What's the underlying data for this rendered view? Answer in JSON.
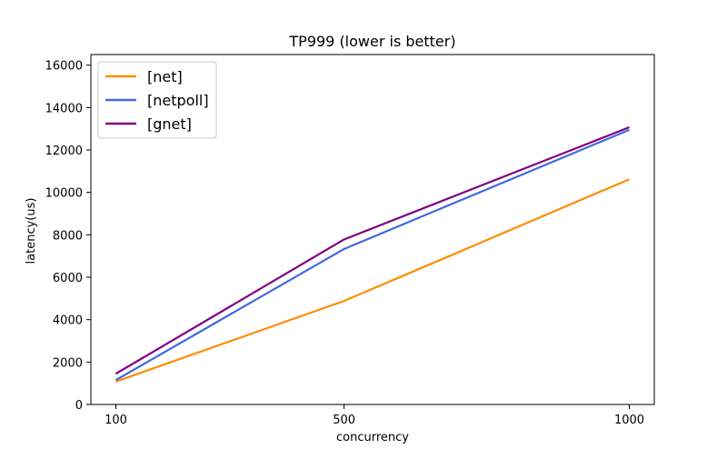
{
  "chart_data": {
    "type": "line",
    "title": "TP999 (lower is better)",
    "xlabel": "concurrency",
    "ylabel": "latency(us)",
    "categories": [
      "100",
      "500",
      "1000"
    ],
    "xlim": [
      100,
      1000
    ],
    "ylim": [
      0,
      16500
    ],
    "yticks": [
      0,
      2000,
      4000,
      6000,
      8000,
      10000,
      12000,
      14000,
      16000
    ],
    "grid": false,
    "legend_position": "top-left",
    "series": [
      {
        "name": "[net]",
        "color": "#ff8c00",
        "values": [
          1080,
          4880,
          10620
        ]
      },
      {
        "name": "[netpoll]",
        "color": "#4169e1",
        "values": [
          1150,
          7330,
          12950
        ]
      },
      {
        "name": "[gnet]",
        "color": "#800080",
        "values": [
          1450,
          7780,
          13070
        ]
      }
    ]
  }
}
